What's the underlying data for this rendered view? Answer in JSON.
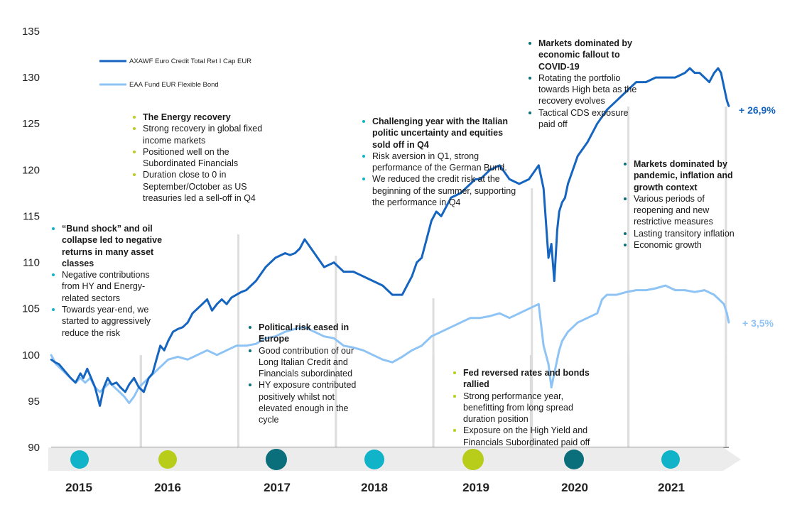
{
  "chart_data": {
    "type": "line",
    "ylim": [
      90,
      135
    ],
    "yticks": [
      90,
      95,
      100,
      105,
      110,
      115,
      120,
      125,
      130,
      135
    ],
    "years": [
      "2015",
      "2016",
      "2017",
      "2018",
      "2019",
      "2020",
      "2021"
    ],
    "series": [
      {
        "name": "AXAWF Euro Credit Total Ret I Cap EUR",
        "color": "#1565c0",
        "end_label": "+ 26,9%",
        "x": [
          2015.0,
          2015.04,
          2015.08,
          2015.12,
          2015.16,
          2015.2,
          2015.25,
          2015.3,
          2015.33,
          2015.37,
          2015.41,
          2015.45,
          2015.5,
          2015.54,
          2015.58,
          2015.62,
          2015.67,
          2015.71,
          2015.76,
          2015.8,
          2015.85,
          2015.9,
          2015.95,
          2016.0,
          2016.04,
          2016.08,
          2016.12,
          2016.16,
          2016.2,
          2016.25,
          2016.3,
          2016.35,
          2016.4,
          2016.45,
          2016.5,
          2016.55,
          2016.6,
          2016.65,
          2016.7,
          2016.75,
          2016.8,
          2016.85,
          2016.9,
          2016.95,
          2017.0,
          2017.1,
          2017.2,
          2017.3,
          2017.4,
          2017.45,
          2017.5,
          2017.55,
          2017.6,
          2017.7,
          2017.8,
          2017.9,
          2018.0,
          2018.1,
          2018.2,
          2018.3,
          2018.4,
          2018.5,
          2018.6,
          2018.65,
          2018.7,
          2018.75,
          2018.8,
          2018.85,
          2018.9,
          2018.95,
          2019.0,
          2019.1,
          2019.2,
          2019.3,
          2019.35,
          2019.4,
          2019.5,
          2019.6,
          2019.7,
          2019.8,
          2019.9,
          2020.0,
          2020.05,
          2020.1,
          2020.13,
          2020.16,
          2020.19,
          2020.21,
          2020.24,
          2020.27,
          2020.3,
          2020.35,
          2020.4,
          2020.5,
          2020.6,
          2020.7,
          2020.8,
          2020.9,
          2021.0,
          2021.1,
          2021.2,
          2021.3,
          2021.4,
          2021.5,
          2021.55,
          2021.6,
          2021.65,
          2021.7,
          2021.75,
          2021.8,
          2021.84,
          2021.87,
          2021.9,
          2021.93,
          2021.95
        ],
        "y": [
          99.5,
          99.2,
          99.0,
          98.5,
          98.0,
          97.5,
          97.0,
          98.0,
          97.5,
          98.5,
          97.5,
          96.5,
          94.5,
          96.5,
          97.5,
          96.8,
          97.0,
          96.5,
          96.0,
          96.8,
          97.5,
          96.5,
          96.0,
          97.5,
          98.0,
          99.5,
          101.0,
          100.5,
          101.5,
          102.5,
          102.8,
          103.0,
          103.5,
          104.5,
          105.0,
          105.5,
          106.0,
          104.8,
          105.5,
          106.0,
          105.5,
          106.2,
          106.5,
          106.8,
          107.0,
          108.0,
          109.5,
          110.5,
          111.0,
          110.8,
          111.0,
          111.5,
          112.5,
          111.0,
          109.5,
          110.0,
          109.0,
          109.0,
          108.5,
          108.0,
          107.5,
          106.5,
          106.5,
          107.5,
          108.5,
          110.0,
          110.5,
          112.5,
          114.5,
          115.5,
          115.0,
          117.0,
          117.5,
          118.5,
          119.0,
          119.0,
          120.0,
          120.5,
          119.0,
          118.5,
          119.0,
          120.5,
          118.0,
          110.5,
          112.0,
          108.0,
          113.5,
          115.5,
          116.5,
          117.0,
          118.5,
          120.0,
          121.5,
          123.0,
          125.0,
          126.5,
          127.5,
          128.5,
          129.5,
          129.5,
          130.0,
          130.0,
          130.0,
          130.5,
          131.0,
          130.5,
          130.5,
          130.0,
          129.5,
          130.5,
          131.0,
          130.5,
          129.0,
          127.5,
          126.9
        ]
      },
      {
        "name": "EAA Fund EUR Flexible Bond",
        "color": "#8ec3f5",
        "end_label": "+ 3,5%",
        "x": [
          2015.0,
          2015.05,
          2015.1,
          2015.15,
          2015.2,
          2015.25,
          2015.3,
          2015.35,
          2015.4,
          2015.45,
          2015.5,
          2015.55,
          2015.6,
          2015.65,
          2015.7,
          2015.75,
          2015.8,
          2015.85,
          2015.9,
          2015.95,
          2016.0,
          2016.05,
          2016.1,
          2016.15,
          2016.2,
          2016.3,
          2016.4,
          2016.5,
          2016.6,
          2016.7,
          2016.8,
          2016.9,
          2017.0,
          2017.1,
          2017.2,
          2017.3,
          2017.4,
          2017.5,
          2017.6,
          2017.7,
          2017.8,
          2017.9,
          2018.0,
          2018.1,
          2018.2,
          2018.3,
          2018.4,
          2018.5,
          2018.6,
          2018.7,
          2018.8,
          2018.9,
          2019.0,
          2019.1,
          2019.2,
          2019.3,
          2019.4,
          2019.5,
          2019.6,
          2019.7,
          2019.8,
          2019.9,
          2020.0,
          2020.05,
          2020.1,
          2020.13,
          2020.16,
          2020.19,
          2020.21,
          2020.24,
          2020.27,
          2020.3,
          2020.35,
          2020.4,
          2020.5,
          2020.6,
          2020.65,
          2020.7,
          2020.8,
          2020.9,
          2021.0,
          2021.1,
          2021.2,
          2021.3,
          2021.4,
          2021.5,
          2021.6,
          2021.7,
          2021.8,
          2021.85,
          2021.9,
          2021.93,
          2021.95
        ],
        "y": [
          100.0,
          99.0,
          98.5,
          98.0,
          97.5,
          97.0,
          97.5,
          97.0,
          97.5,
          96.5,
          96.0,
          96.5,
          97.0,
          96.5,
          96.0,
          95.5,
          94.8,
          95.5,
          96.5,
          97.0,
          97.5,
          98.0,
          98.5,
          99.0,
          99.5,
          99.8,
          99.5,
          100.0,
          100.5,
          100.0,
          100.5,
          101.0,
          101.0,
          101.2,
          101.8,
          102.0,
          102.5,
          102.8,
          103.0,
          102.5,
          102.0,
          101.8,
          101.0,
          100.8,
          100.5,
          100.0,
          99.5,
          99.2,
          99.8,
          100.5,
          101.0,
          102.0,
          102.5,
          103.0,
          103.5,
          104.0,
          104.0,
          104.2,
          104.5,
          104.0,
          104.5,
          105.0,
          105.5,
          101.0,
          99.0,
          96.5,
          98.0,
          99.5,
          100.5,
          101.5,
          102.0,
          102.5,
          103.0,
          103.5,
          104.0,
          104.5,
          106.0,
          106.5,
          106.5,
          106.8,
          107.0,
          107.0,
          107.2,
          107.5,
          107.0,
          107.0,
          106.8,
          107.0,
          106.5,
          106.0,
          105.5,
          104.5,
          103.5
        ]
      }
    ]
  },
  "annotations": [
    {
      "id": "bund",
      "dot": "#11b3c8",
      "items": [
        {
          "t": "“Bund shock” and oil collapse led to negative returns in many asset classes",
          "b": true
        },
        {
          "t": "Negative contributions from HY and Energy-related sectors",
          "b": false
        },
        {
          "t": "Towards year-end, we started to aggressively reduce the risk",
          "b": false
        }
      ]
    },
    {
      "id": "energy",
      "dot": "#b8cc1a",
      "items": [
        {
          "t": "The Energy recovery",
          "b": true
        },
        {
          "t": "Strong recovery in global fixed income markets",
          "b": false
        },
        {
          "t": "Positioned well on the Subordinated Financials",
          "b": false
        },
        {
          "t": "Duration close to 0 in September/October as US treasuries led a sell-off in Q4",
          "b": false
        }
      ]
    },
    {
      "id": "political",
      "dot": "#0a6f7a",
      "items": [
        {
          "t": "Political risk eased in Europe",
          "b": true
        },
        {
          "t": "Good contribution of our Long Italian Credit and Financials subordinated",
          "b": false
        },
        {
          "t": "HY exposure contributed positively whilst not elevated enough in the cycle",
          "b": false
        }
      ]
    },
    {
      "id": "italian",
      "dot": "#11b3c8",
      "items": [
        {
          "t": "Challenging year with the Italian politic uncertainty and equities sold off in Q4",
          "b": true
        },
        {
          "t": "Risk aversion in Q1, strong performance of the German Bund.",
          "b": false
        },
        {
          "t": "We reduced the credit risk at the beginning of  the summer, supporting the performance in Q4",
          "b": false
        }
      ]
    },
    {
      "id": "fed",
      "dot": "#b8cc1a",
      "items": [
        {
          "t": "Fed reversed rates and bonds rallied",
          "b": true
        },
        {
          "t": "Strong performance year, benefitting from long  spread duration position",
          "b": false
        },
        {
          "t": "Exposure on the High Yield and Financials Subordinated paid off",
          "b": false
        }
      ]
    },
    {
      "id": "covid",
      "dot": "#0a6f7a",
      "items": [
        {
          "t": "Markets dominated by economic fallout to COVID-19",
          "b": true
        },
        {
          "t": "Rotating the portfolio towards High beta as the recovery evolves",
          "b": false
        },
        {
          "t": "Tactical CDS exposure paid off",
          "b": false
        }
      ]
    },
    {
      "id": "pandemic",
      "dot": "#0a6f7a",
      "items": [
        {
          "t": "Markets dominated by pandemic, inflation and growth context",
          "b": true
        },
        {
          "t": "Various periods of reopening and new restrictive measures",
          "b": false
        },
        {
          "t": "Lasting transitory inflation",
          "b": false
        },
        {
          "t": "Economic growth",
          "b": false
        }
      ]
    }
  ],
  "timeline_colors": [
    "#11b3c8",
    "#b8cc1a",
    "#0a6f7a",
    "#11b3c8",
    "#b8cc1a",
    "#0a6f7a",
    "#11b3c8"
  ]
}
